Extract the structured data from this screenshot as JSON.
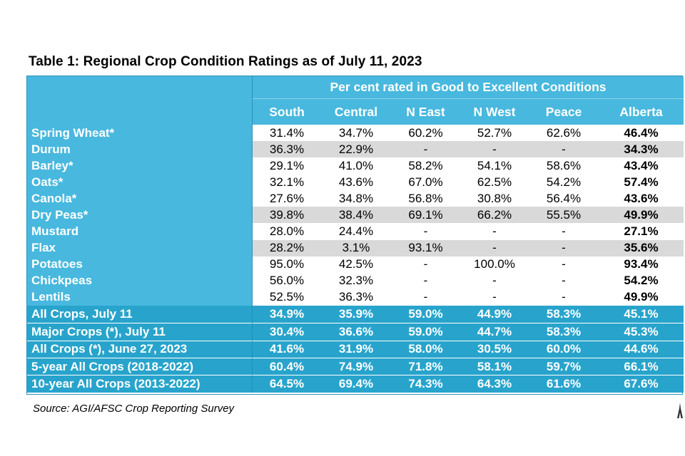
{
  "title": "Table 1: Regional Crop Condition Ratings as of July 11, 2023",
  "header": {
    "group": "Per cent rated in Good to Excellent Conditions",
    "columns": [
      "South",
      "Central",
      "N East",
      "N West",
      "Peace",
      "Alberta"
    ]
  },
  "crops": [
    {
      "label": "Spring Wheat*",
      "values": [
        "31.4%",
        "34.7%",
        "60.2%",
        "52.7%",
        "62.6%",
        "46.4%"
      ]
    },
    {
      "label": "Durum",
      "values": [
        "36.3%",
        "22.9%",
        "-",
        "-",
        "-",
        "34.3%"
      ]
    },
    {
      "label": "Barley*",
      "values": [
        "29.1%",
        "41.0%",
        "58.2%",
        "54.1%",
        "58.6%",
        "43.4%"
      ]
    },
    {
      "label": "Oats*",
      "values": [
        "32.1%",
        "43.6%",
        "67.0%",
        "62.5%",
        "54.2%",
        "57.4%"
      ]
    },
    {
      "label": "Canola*",
      "values": [
        "27.6%",
        "34.8%",
        "56.8%",
        "30.8%",
        "56.4%",
        "43.6%"
      ]
    },
    {
      "label": "Dry Peas*",
      "values": [
        "39.8%",
        "38.4%",
        "69.1%",
        "66.2%",
        "55.5%",
        "49.9%"
      ]
    },
    {
      "label": "Mustard",
      "values": [
        "28.0%",
        "24.4%",
        "-",
        "-",
        "-",
        "27.1%"
      ]
    },
    {
      "label": "Flax",
      "values": [
        "28.2%",
        "3.1%",
        "93.1%",
        "-",
        "-",
        "35.6%"
      ]
    },
    {
      "label": "Potatoes",
      "values": [
        "95.0%",
        "42.5%",
        "-",
        "100.0%",
        "-",
        "93.4%"
      ]
    },
    {
      "label": "Chickpeas",
      "values": [
        "56.0%",
        "32.3%",
        "-",
        "-",
        "-",
        "54.2%"
      ]
    },
    {
      "label": "Lentils",
      "values": [
        "52.5%",
        "36.3%",
        "-",
        "-",
        "-",
        "49.9%"
      ]
    }
  ],
  "summary": [
    {
      "label": "All Crops, July 11",
      "values": [
        "34.9%",
        "35.9%",
        "59.0%",
        "44.9%",
        "58.3%",
        "45.1%"
      ]
    },
    {
      "label": "Major Crops (*), July 11",
      "values": [
        "30.4%",
        "36.6%",
        "59.0%",
        "44.7%",
        "58.3%",
        "45.3%"
      ]
    },
    {
      "label": "All Crops (*), June 27, 2023",
      "values": [
        "41.6%",
        "31.9%",
        "58.0%",
        "30.5%",
        "60.0%",
        "44.6%"
      ]
    },
    {
      "label": "5-year All Crops (2018-2022)",
      "values": [
        "60.4%",
        "74.9%",
        "71.8%",
        "58.1%",
        "59.7%",
        "66.1%"
      ]
    },
    {
      "label": "10-year All Crops (2013-2022)",
      "values": [
        "64.5%",
        "69.4%",
        "74.3%",
        "64.3%",
        "61.6%",
        "67.6%"
      ]
    }
  ],
  "source": "Source: AGI/AFSC Crop Reporting Survey",
  "colors": {
    "header_blue": "#48b8de",
    "summary_blue": "#28a4cc",
    "stripe_gray": "#d9d9d9"
  }
}
